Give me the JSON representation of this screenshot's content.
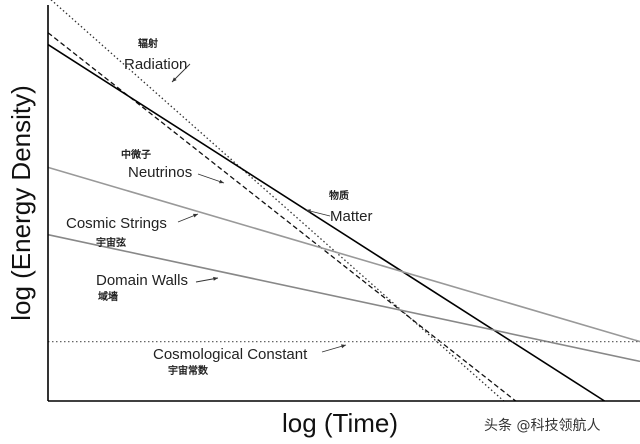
{
  "chart_data": {
    "type": "line",
    "xlabel": "log (Time)",
    "ylabel": "log (Energy Density)",
    "xlim": [
      0,
      1
    ],
    "ylim": [
      0,
      1
    ],
    "grid": false,
    "series": [
      {
        "name": "Radiation",
        "name_zh": "辐射",
        "style": "dotted",
        "color": "#333333",
        "x": [
          0,
          0.77
        ],
        "y": [
          1.02,
          0.0
        ]
      },
      {
        "name": "Neutrinos",
        "name_zh": "中微子",
        "style": "dashed",
        "color": "#111111",
        "x": [
          0,
          0.79
        ],
        "y": [
          0.93,
          0.0
        ]
      },
      {
        "name": "Matter",
        "name_zh": "物质",
        "style": "solid",
        "color": "#000000",
        "x": [
          0,
          0.94
        ],
        "y": [
          0.9,
          0.0
        ]
      },
      {
        "name": "Cosmic Strings",
        "name_zh": "宇宙弦",
        "style": "solid",
        "color": "#999999",
        "x": [
          0,
          1.0
        ],
        "y": [
          0.59,
          0.15
        ]
      },
      {
        "name": "Domain Walls",
        "name_zh": "域墙",
        "style": "solid",
        "color": "#888888",
        "x": [
          0,
          1.0
        ],
        "y": [
          0.42,
          0.1
        ]
      },
      {
        "name": "Cosmological Constant",
        "name_zh": "宇宙常数",
        "style": "dotted",
        "color": "#666666",
        "x": [
          0,
          1.0
        ],
        "y": [
          0.15,
          0.15
        ]
      }
    ]
  },
  "watermark": "头条 @科技领航人"
}
